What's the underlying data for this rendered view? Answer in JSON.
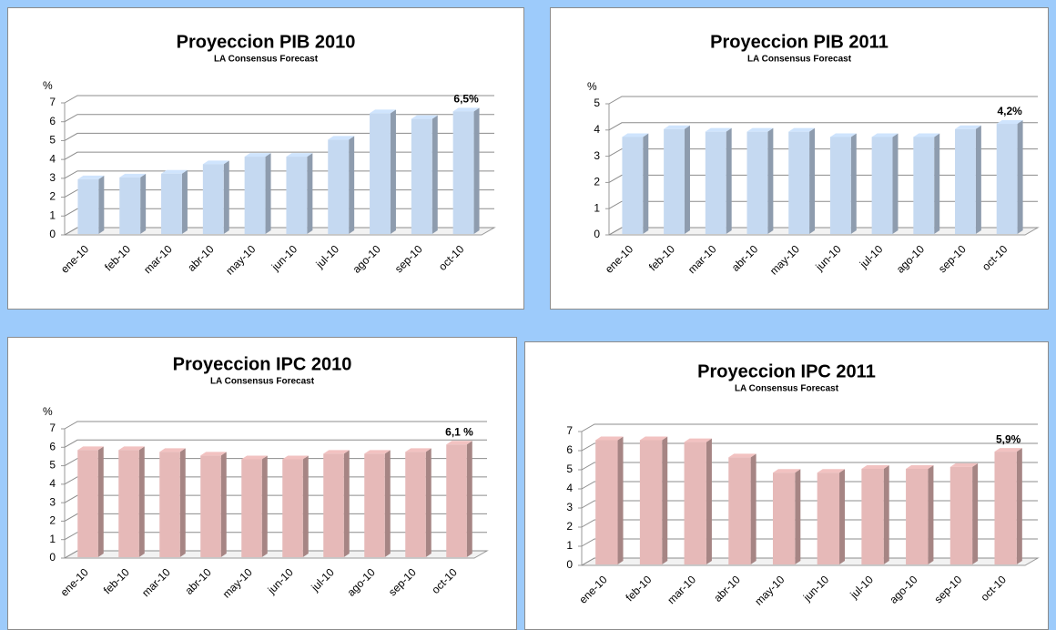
{
  "chart_data": [
    {
      "type": "bar3d",
      "title": "Proyeccion PIB 2010",
      "subtitle": "LA Consensus Forecast",
      "y_label": "%",
      "categories": [
        "ene-10",
        "feb-10",
        "mar-10",
        "abr-10",
        "may-10",
        "jun-10",
        "jul-10",
        "ago-10",
        "sep-10",
        "oct-10"
      ],
      "values": [
        2.9,
        3.0,
        3.2,
        3.7,
        4.1,
        4.1,
        5.0,
        6.4,
        6.1,
        6.5
      ],
      "value_labels": [
        null,
        null,
        null,
        null,
        null,
        null,
        null,
        null,
        null,
        "6,5%"
      ],
      "color": "#c5d9f1",
      "ylim": [
        0,
        7
      ],
      "yticks": [
        0,
        1,
        2,
        3,
        4,
        5,
        6,
        7
      ],
      "grid": true
    },
    {
      "type": "bar3d",
      "title": "Proyeccion PIB 2011",
      "subtitle": "LA Consensus Forecast",
      "y_label": "%",
      "categories": [
        "ene-10",
        "feb-10",
        "mar-10",
        "abr-10",
        "may-10",
        "jun-10",
        "jul-10",
        "ago-10",
        "sep-10",
        "oct-10"
      ],
      "values": [
        3.7,
        4.0,
        3.9,
        3.9,
        3.9,
        3.7,
        3.7,
        3.7,
        4.0,
        4.2
      ],
      "value_labels": [
        null,
        null,
        null,
        null,
        null,
        null,
        null,
        null,
        null,
        "4,2%"
      ],
      "color": "#c5d9f1",
      "ylim": [
        0,
        5
      ],
      "yticks": [
        0,
        1,
        2,
        3,
        4,
        5
      ],
      "grid": true
    },
    {
      "type": "bar3d",
      "title": "Proyeccion IPC 2010",
      "subtitle": "LA Consensus Forecast",
      "y_label": "%",
      "categories": [
        "ene-10",
        "feb-10",
        "mar-10",
        "abr-10",
        "may-10",
        "jun-10",
        "jul-10",
        "ago-10",
        "sep-10",
        "oct-10"
      ],
      "values": [
        5.8,
        5.8,
        5.7,
        5.5,
        5.3,
        5.3,
        5.6,
        5.6,
        5.7,
        6.1
      ],
      "value_labels": [
        null,
        null,
        null,
        null,
        null,
        null,
        null,
        null,
        null,
        "6,1 %"
      ],
      "color": "#e6b9b8",
      "ylim": [
        0,
        7
      ],
      "yticks": [
        0,
        1,
        2,
        3,
        4,
        5,
        6,
        7
      ],
      "grid": true
    },
    {
      "type": "bar3d",
      "title": "Proyeccion IPC 2011",
      "subtitle": "LA Consensus Forecast",
      "categories": [
        "ene-10",
        "feb-10",
        "mar-10",
        "abr-10",
        "may-10",
        "jun-10",
        "jul-10",
        "ago-10",
        "sep-10",
        "oct-10"
      ],
      "values": [
        6.5,
        6.5,
        6.4,
        5.6,
        4.8,
        4.8,
        5.0,
        5.0,
        5.1,
        5.9
      ],
      "value_labels": [
        null,
        null,
        null,
        null,
        null,
        null,
        null,
        null,
        null,
        "5,9%"
      ],
      "color": "#e6b9b8",
      "ylim": [
        0,
        7
      ],
      "yticks": [
        0,
        1,
        2,
        3,
        4,
        5,
        6,
        7
      ],
      "grid": true
    }
  ]
}
